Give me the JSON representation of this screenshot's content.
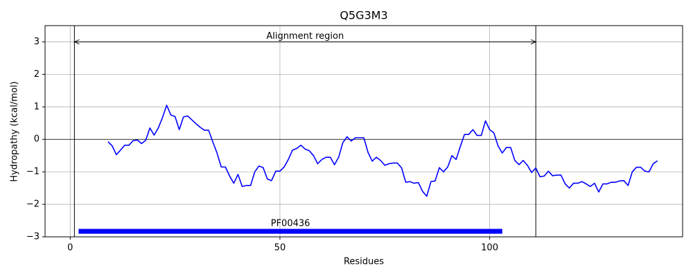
{
  "chart_data": {
    "type": "line",
    "title": "Q5G3M3",
    "xlabel": "Residues",
    "ylabel": "Hydropathy (kcal/mol)",
    "x": [
      9,
      10,
      11,
      12,
      13,
      14,
      15,
      16,
      17,
      18,
      19,
      20,
      21,
      22,
      23,
      24,
      25,
      26,
      27,
      28,
      29,
      30,
      31,
      32,
      33,
      34,
      35,
      36,
      37,
      38,
      39,
      40,
      41,
      42,
      43,
      44,
      45,
      46,
      47,
      48,
      49,
      50,
      51,
      52,
      53,
      54,
      55,
      56,
      57,
      58,
      59,
      60,
      61,
      62,
      63,
      64,
      65,
      66,
      67,
      68,
      69,
      70,
      71,
      72,
      73,
      74,
      75,
      76,
      77,
      78,
      79,
      80,
      81,
      82,
      83,
      84,
      85,
      86,
      87,
      88,
      89,
      90,
      91,
      92,
      93,
      94,
      95,
      96,
      97,
      98,
      99,
      100,
      101,
      102,
      103,
      104,
      105,
      106,
      107,
      108,
      109,
      110,
      111,
      112,
      113,
      114,
      115,
      116,
      117,
      118,
      119,
      120,
      121,
      122,
      123,
      124,
      125,
      126,
      127,
      128,
      129,
      130,
      131,
      132,
      133,
      134,
      135,
      136,
      137,
      138,
      139,
      140
    ],
    "values": [
      -0.07,
      -0.2,
      -0.47,
      -0.33,
      -0.18,
      -0.18,
      -0.04,
      -0.02,
      -0.13,
      -0.03,
      0.35,
      0.13,
      0.35,
      0.67,
      1.05,
      0.75,
      0.7,
      0.3,
      0.69,
      0.72,
      0.6,
      0.48,
      0.37,
      0.28,
      0.28,
      -0.08,
      -0.42,
      -0.85,
      -0.85,
      -1.13,
      -1.35,
      -1.08,
      -1.45,
      -1.42,
      -1.42,
      -1.0,
      -0.82,
      -0.87,
      -1.22,
      -1.27,
      -0.98,
      -0.98,
      -0.85,
      -0.62,
      -0.33,
      -0.28,
      -0.18,
      -0.3,
      -0.35,
      -0.5,
      -0.75,
      -0.62,
      -0.55,
      -0.55,
      -0.78,
      -0.55,
      -0.1,
      0.08,
      -0.05,
      0.05,
      0.05,
      0.05,
      -0.4,
      -0.67,
      -0.55,
      -0.65,
      -0.8,
      -0.75,
      -0.73,
      -0.73,
      -0.88,
      -1.32,
      -1.3,
      -1.35,
      -1.33,
      -1.6,
      -1.75,
      -1.3,
      -1.28,
      -0.87,
      -1.0,
      -0.85,
      -0.5,
      -0.62,
      -0.22,
      0.15,
      0.15,
      0.3,
      0.12,
      0.12,
      0.57,
      0.3,
      0.2,
      -0.2,
      -0.42,
      -0.25,
      -0.25,
      -0.65,
      -0.78,
      -0.65,
      -0.8,
      -1.02,
      -0.88,
      -1.15,
      -1.13,
      -0.98,
      -1.12,
      -1.1,
      -1.1,
      -1.37,
      -1.5,
      -1.35,
      -1.35,
      -1.3,
      -1.37,
      -1.45,
      -1.35,
      -1.62,
      -1.37,
      -1.37,
      -1.32,
      -1.32,
      -1.28,
      -1.27,
      -1.42,
      -1.0,
      -0.86,
      -0.86,
      -0.98,
      -1.0,
      -0.75,
      -0.66
    ],
    "color": "#0000ff",
    "xlim": [
      -6,
      146
    ],
    "ylim": [
      -3,
      3.5
    ],
    "xticks": [
      0,
      50,
      100
    ],
    "yticks": [
      {
        "value": -3,
        "label": "−3"
      },
      {
        "value": -2,
        "label": "−2"
      },
      {
        "value": -1,
        "label": "−1"
      },
      0,
      1,
      2,
      3
    ],
    "grid": true,
    "hline": 0,
    "vlines": [
      1,
      111
    ],
    "region": {
      "label": "Alignment region",
      "start": 1,
      "end": 111,
      "y": 3
    },
    "domains": [
      {
        "label": "PF00436",
        "start": 2,
        "end": 103,
        "y": -2.83,
        "color": "#0000ff"
      }
    ]
  }
}
